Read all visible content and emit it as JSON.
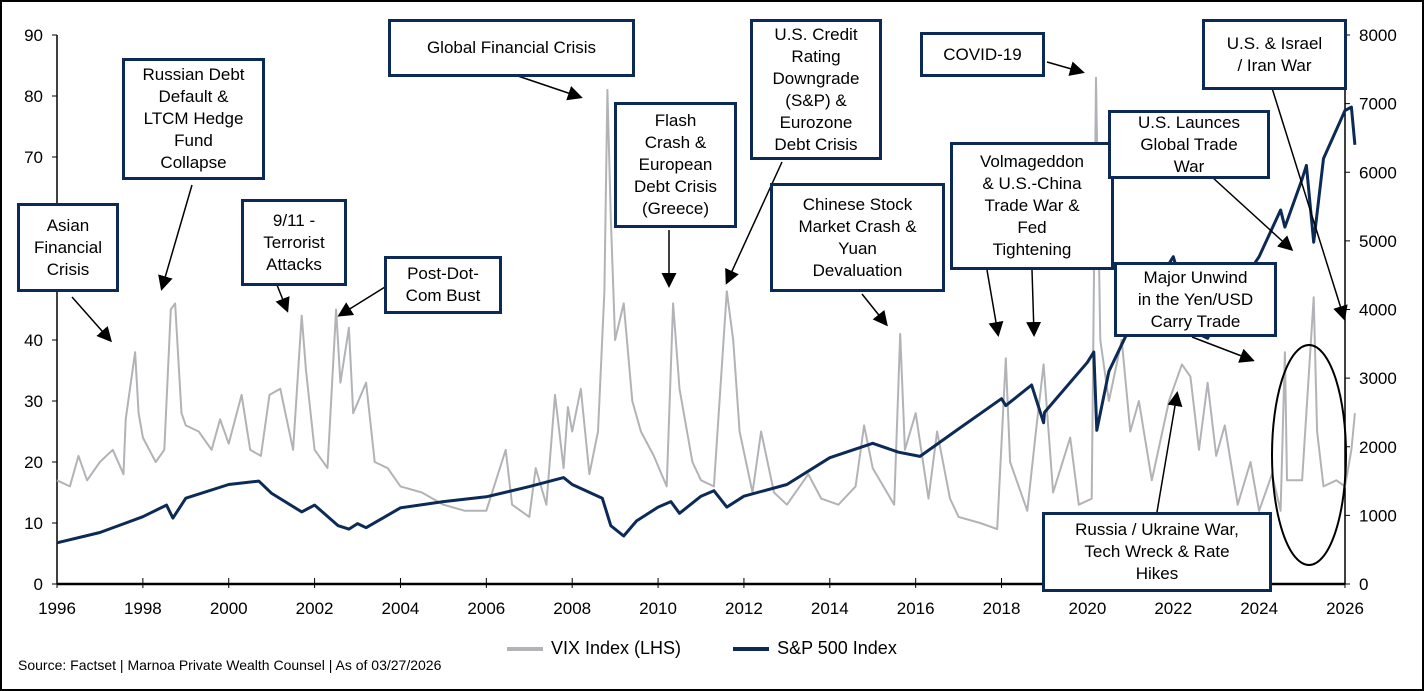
{
  "chart_data": {
    "type": "line",
    "title": "",
    "xlabel": "",
    "ylabel": "",
    "xlim": [
      1996,
      2026
    ],
    "ylim_left": [
      0,
      90
    ],
    "ylim_right": [
      0,
      8000
    ],
    "x_ticks": [
      "1996",
      "1998",
      "2000",
      "2002",
      "2004",
      "2006",
      "2008",
      "2010",
      "2012",
      "2014",
      "2016",
      "2018",
      "2020",
      "2022",
      "2024",
      "2026"
    ],
    "y_ticks_left": [
      "0",
      "10",
      "20",
      "30",
      "40",
      "50",
      "60",
      "70",
      "80",
      "90"
    ],
    "y_ticks_right": [
      "0",
      "1000",
      "2000",
      "3000",
      "4000",
      "5000",
      "6000",
      "7000",
      "8000"
    ],
    "legend_position": "bottom",
    "series": [
      {
        "name": "VIX Index (LHS)",
        "axis": "left",
        "color": "#b1b3b6",
        "points": [
          [
            1996.0,
            17
          ],
          [
            1996.3,
            16
          ],
          [
            1996.5,
            21
          ],
          [
            1996.7,
            17
          ],
          [
            1997.0,
            20
          ],
          [
            1997.3,
            22
          ],
          [
            1997.55,
            18
          ],
          [
            1997.6,
            27
          ],
          [
            1997.82,
            38
          ],
          [
            1997.9,
            28
          ],
          [
            1998.0,
            24
          ],
          [
            1998.3,
            20
          ],
          [
            1998.5,
            22
          ],
          [
            1998.65,
            45
          ],
          [
            1998.75,
            46
          ],
          [
            1998.9,
            28
          ],
          [
            1999.0,
            26
          ],
          [
            1999.3,
            25
          ],
          [
            1999.6,
            22
          ],
          [
            1999.8,
            27
          ],
          [
            2000.0,
            23
          ],
          [
            2000.3,
            31
          ],
          [
            2000.5,
            22
          ],
          [
            2000.75,
            21
          ],
          [
            2000.95,
            31
          ],
          [
            2001.2,
            32
          ],
          [
            2001.5,
            22
          ],
          [
            2001.7,
            44
          ],
          [
            2001.8,
            35
          ],
          [
            2002.0,
            22
          ],
          [
            2002.3,
            19
          ],
          [
            2002.5,
            45
          ],
          [
            2002.6,
            33
          ],
          [
            2002.8,
            42
          ],
          [
            2002.9,
            28
          ],
          [
            2003.2,
            33
          ],
          [
            2003.4,
            20
          ],
          [
            2003.7,
            19
          ],
          [
            2004.0,
            16
          ],
          [
            2004.5,
            15
          ],
          [
            2005.0,
            13
          ],
          [
            2005.5,
            12
          ],
          [
            2006.0,
            12
          ],
          [
            2006.45,
            22
          ],
          [
            2006.6,
            13
          ],
          [
            2007.0,
            11
          ],
          [
            2007.15,
            19
          ],
          [
            2007.4,
            13
          ],
          [
            2007.6,
            31
          ],
          [
            2007.8,
            19
          ],
          [
            2007.9,
            29
          ],
          [
            2008.0,
            25
          ],
          [
            2008.2,
            32
          ],
          [
            2008.4,
            18
          ],
          [
            2008.6,
            25
          ],
          [
            2008.75,
            48
          ],
          [
            2008.82,
            81
          ],
          [
            2008.9,
            60
          ],
          [
            2009.0,
            40
          ],
          [
            2009.2,
            46
          ],
          [
            2009.4,
            30
          ],
          [
            2009.6,
            25
          ],
          [
            2009.9,
            21
          ],
          [
            2010.2,
            16
          ],
          [
            2010.35,
            46
          ],
          [
            2010.5,
            32
          ],
          [
            2010.8,
            20
          ],
          [
            2011.0,
            17
          ],
          [
            2011.3,
            16
          ],
          [
            2011.6,
            48
          ],
          [
            2011.75,
            40
          ],
          [
            2011.9,
            25
          ],
          [
            2012.2,
            15
          ],
          [
            2012.4,
            25
          ],
          [
            2012.7,
            15
          ],
          [
            2013.0,
            13
          ],
          [
            2013.5,
            18
          ],
          [
            2013.8,
            14
          ],
          [
            2014.2,
            13
          ],
          [
            2014.6,
            16
          ],
          [
            2014.8,
            26
          ],
          [
            2015.0,
            19
          ],
          [
            2015.5,
            13
          ],
          [
            2015.64,
            41
          ],
          [
            2015.75,
            22
          ],
          [
            2016.0,
            28
          ],
          [
            2016.3,
            14
          ],
          [
            2016.5,
            25
          ],
          [
            2016.8,
            14
          ],
          [
            2017.0,
            11
          ],
          [
            2017.5,
            10
          ],
          [
            2017.9,
            9
          ],
          [
            2018.1,
            37
          ],
          [
            2018.2,
            20
          ],
          [
            2018.6,
            12
          ],
          [
            2018.8,
            25
          ],
          [
            2018.98,
            36
          ],
          [
            2019.2,
            15
          ],
          [
            2019.6,
            24
          ],
          [
            2019.8,
            13
          ],
          [
            2020.1,
            14
          ],
          [
            2020.2,
            83
          ],
          [
            2020.3,
            40
          ],
          [
            2020.5,
            30
          ],
          [
            2020.8,
            40
          ],
          [
            2021.0,
            25
          ],
          [
            2021.2,
            30
          ],
          [
            2021.5,
            17
          ],
          [
            2021.9,
            30
          ],
          [
            2022.2,
            36
          ],
          [
            2022.4,
            34
          ],
          [
            2022.6,
            22
          ],
          [
            2022.8,
            33
          ],
          [
            2023.0,
            21
          ],
          [
            2023.2,
            26
          ],
          [
            2023.5,
            13
          ],
          [
            2023.8,
            20
          ],
          [
            2024.0,
            12
          ],
          [
            2024.3,
            18
          ],
          [
            2024.5,
            12
          ],
          [
            2024.6,
            38
          ],
          [
            2024.65,
            17
          ],
          [
            2025.0,
            17
          ],
          [
            2025.27,
            47
          ],
          [
            2025.35,
            25
          ],
          [
            2025.5,
            16
          ],
          [
            2025.8,
            17
          ],
          [
            2026.0,
            16
          ],
          [
            2026.15,
            22
          ],
          [
            2026.23,
            28
          ]
        ]
      },
      {
        "name": "S&P 500 Index",
        "axis": "right",
        "color": "#0b2a55",
        "points": [
          [
            1996.0,
            600
          ],
          [
            1997.0,
            750
          ],
          [
            1998.0,
            980
          ],
          [
            1998.55,
            1150
          ],
          [
            1998.7,
            960
          ],
          [
            1999.0,
            1250
          ],
          [
            2000.0,
            1450
          ],
          [
            2000.7,
            1500
          ],
          [
            2001.0,
            1320
          ],
          [
            2001.7,
            1050
          ],
          [
            2002.0,
            1150
          ],
          [
            2002.55,
            850
          ],
          [
            2002.8,
            800
          ],
          [
            2003.0,
            880
          ],
          [
            2003.2,
            820
          ],
          [
            2004.0,
            1110
          ],
          [
            2005.0,
            1200
          ],
          [
            2006.0,
            1270
          ],
          [
            2007.0,
            1420
          ],
          [
            2007.8,
            1550
          ],
          [
            2008.0,
            1450
          ],
          [
            2008.7,
            1250
          ],
          [
            2008.9,
            850
          ],
          [
            2009.2,
            700
          ],
          [
            2009.5,
            920
          ],
          [
            2010.0,
            1120
          ],
          [
            2010.3,
            1200
          ],
          [
            2010.5,
            1030
          ],
          [
            2011.0,
            1280
          ],
          [
            2011.3,
            1360
          ],
          [
            2011.6,
            1120
          ],
          [
            2012.0,
            1280
          ],
          [
            2013.0,
            1450
          ],
          [
            2014.0,
            1840
          ],
          [
            2015.0,
            2050
          ],
          [
            2015.6,
            1920
          ],
          [
            2016.1,
            1860
          ],
          [
            2017.0,
            2260
          ],
          [
            2018.0,
            2700
          ],
          [
            2018.1,
            2600
          ],
          [
            2018.7,
            2900
          ],
          [
            2018.98,
            2350
          ],
          [
            2019.0,
            2500
          ],
          [
            2020.0,
            3230
          ],
          [
            2020.15,
            3380
          ],
          [
            2020.22,
            2240
          ],
          [
            2020.5,
            3100
          ],
          [
            2021.0,
            3750
          ],
          [
            2022.0,
            4770
          ],
          [
            2022.5,
            3670
          ],
          [
            2022.8,
            3580
          ],
          [
            2023.0,
            3840
          ],
          [
            2024.0,
            4770
          ],
          [
            2024.5,
            5450
          ],
          [
            2024.6,
            5200
          ],
          [
            2025.0,
            5900
          ],
          [
            2025.1,
            6100
          ],
          [
            2025.27,
            4980
          ],
          [
            2025.5,
            6200
          ],
          [
            2026.0,
            6900
          ],
          [
            2026.15,
            6950
          ],
          [
            2026.23,
            6400
          ]
        ]
      }
    ],
    "annotations": [
      "Asian\nFinancial\nCrisis",
      "Russian Debt\nDefault &\nLTCM Hedge\nFund\nCollapse",
      "9/11 -\nTerrorist\nAttacks",
      "Post-Dot-\nCom Bust",
      "Global Financial Crisis",
      "Flash\nCrash &\nEuropean\nDebt Crisis\n(Greece)",
      "U.S. Credit\nRating\nDowngrade\n(S&P) &\nEurozone\nDebt Crisis",
      "Chinese Stock\nMarket Crash &\nYuan\nDevaluation",
      "COVID-19",
      "Volmageddon\n& U.S.-China\nTrade War &\nFed\nTightening",
      "U.S. Launces\nGlobal Trade\nWar",
      "U.S. & Israel\n/ Iran War",
      "Major Unwind\nin the Yen/USD\nCarry Trade",
      "Russia / Ukraine War,\nTech Wreck & Rate\nHikes"
    ],
    "source": "Source: Factset | Marnoa Private Wealth Counsel | As of 03/27/2026"
  }
}
